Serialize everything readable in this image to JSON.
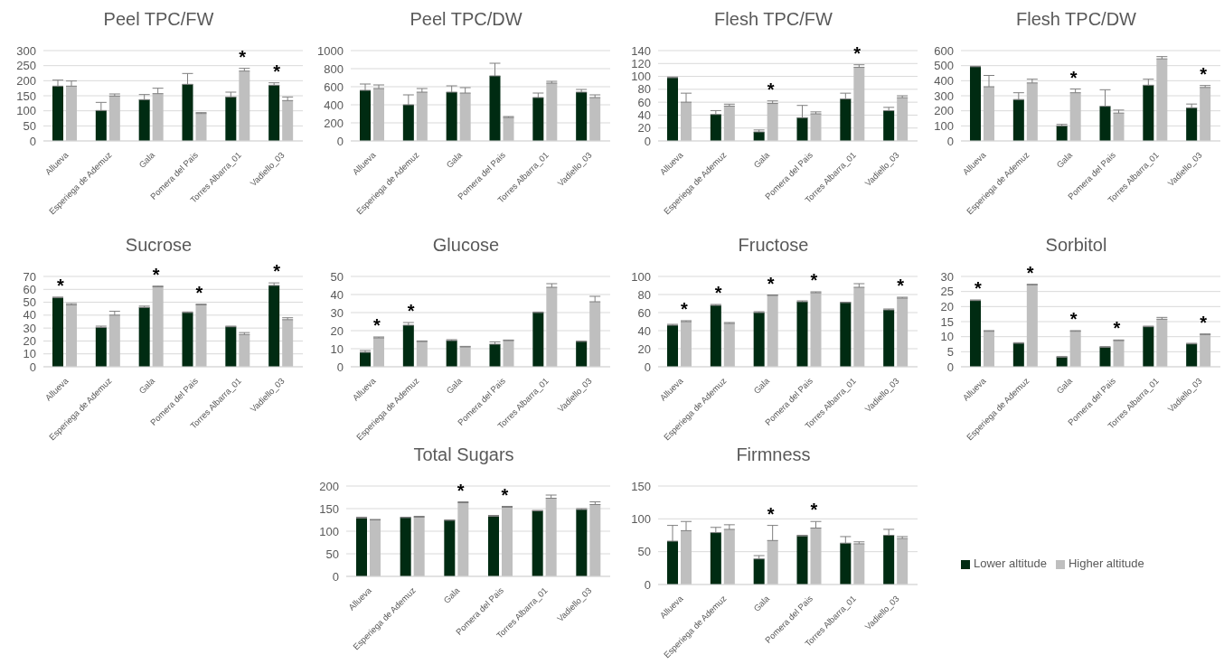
{
  "chart_data": [
    {
      "type": "bar",
      "title": "Peel TPC/FW",
      "categories": [
        "Allueva",
        "Esperiega de Ademuz",
        "Gala",
        "Pomera del Pais",
        "Torres Albarra_01",
        "Vadiello_03"
      ],
      "ylim": [
        0,
        300
      ],
      "yticks": [
        0,
        50,
        100,
        150,
        200,
        250,
        300
      ],
      "grid": "y",
      "series": [
        {
          "color": "#002b12",
          "values": [
            182,
            101,
            137,
            188,
            146,
            185
          ],
          "errors": [
            [
              182,
              202
            ],
            [
              101,
              128
            ],
            [
              137,
              154
            ],
            [
              188,
              224
            ],
            [
              146,
              162
            ],
            [
              185,
              193
            ]
          ]
        },
        {
          "color": "#bfbfbf",
          "values": [
            182,
            149,
            157,
            91,
            232,
            134
          ],
          "errors": [
            [
              182,
              199
            ],
            [
              149,
              156
            ],
            [
              157,
              175
            ],
            [
              91,
              94
            ],
            [
              232,
              241
            ],
            [
              134,
              146
            ]
          ]
        }
      ],
      "annotations": [
        {
          "text": "*",
          "x": "Torres Albarra_01",
          "y": 232
        },
        {
          "text": "*",
          "x": "Vadiello_03",
          "y": 185
        }
      ]
    },
    {
      "type": "bar",
      "title": "Peel TPC/DW",
      "categories": [
        "Allueva",
        "Esperiega de Ademuz",
        "Gala",
        "Pomera del Pais",
        "Torres Albarra_01",
        "Vadiello_03"
      ],
      "ylim": [
        0,
        1000
      ],
      "yticks": [
        0,
        200,
        400,
        600,
        800,
        1000
      ],
      "grid": "y",
      "series": [
        {
          "color": "#002b12",
          "values": [
            560,
            400,
            540,
            720,
            480,
            540
          ],
          "errors": [
            [
              560,
              630
            ],
            [
              400,
              510
            ],
            [
              540,
              610
            ],
            [
              720,
              860
            ],
            [
              480,
              530
            ],
            [
              540,
              570
            ]
          ]
        },
        {
          "color": "#bfbfbf",
          "values": [
            580,
            540,
            530,
            260,
            640,
            480
          ],
          "errors": [
            [
              580,
              620
            ],
            [
              540,
              580
            ],
            [
              530,
              590
            ],
            [
              260,
              270
            ],
            [
              640,
              660
            ],
            [
              480,
              510
            ]
          ]
        }
      ]
    },
    {
      "type": "bar",
      "title": "Flesh TPC/FW",
      "categories": [
        "Allueva",
        "Esperiega de Ademuz",
        "Gala",
        "Pomera del Pais",
        "Torres Albarra_01",
        "Vadiello_03"
      ],
      "ylim": [
        0,
        140
      ],
      "yticks": [
        0,
        20,
        40,
        60,
        80,
        100,
        120,
        140
      ],
      "grid": "y",
      "series": [
        {
          "color": "#002b12",
          "values": [
            98,
            41,
            14,
            36,
            65,
            47
          ],
          "errors": [
            [
              98,
              99
            ],
            [
              41,
              47
            ],
            [
              14,
              17
            ],
            [
              36,
              55
            ],
            [
              65,
              74
            ],
            [
              47,
              52
            ]
          ]
        },
        {
          "color": "#bfbfbf",
          "values": [
            60,
            54,
            58,
            42,
            114,
            67
          ],
          "errors": [
            [
              60,
              74
            ],
            [
              54,
              57
            ],
            [
              58,
              62
            ],
            [
              42,
              45
            ],
            [
              114,
              118
            ],
            [
              67,
              70
            ]
          ]
        }
      ],
      "annotations": [
        {
          "text": "*",
          "x": "Gala",
          "y": 58
        },
        {
          "text": "*",
          "x": "Torres Albarra_01",
          "y": 114
        }
      ]
    },
    {
      "type": "bar",
      "title": "Flesh TPC/DW",
      "categories": [
        "Allueva",
        "Esperiega de Ademuz",
        "Gala",
        "Pomera del Pais",
        "Torres Albarra_01",
        "Vadiello_03"
      ],
      "ylim": [
        0,
        600
      ],
      "yticks": [
        0,
        100,
        200,
        300,
        400,
        500,
        600
      ],
      "grid": "y",
      "series": [
        {
          "color": "#002b12",
          "values": [
            493,
            275,
            100,
            230,
            370,
            220
          ],
          "errors": [
            [
              493,
              496
            ],
            [
              275,
              320
            ],
            [
              100,
              110
            ],
            [
              230,
              340
            ],
            [
              370,
              410
            ],
            [
              220,
              245
            ]
          ]
        },
        {
          "color": "#bfbfbf",
          "values": [
            360,
            385,
            320,
            185,
            545,
            355
          ],
          "errors": [
            [
              360,
              435
            ],
            [
              385,
              410
            ],
            [
              320,
              345
            ],
            [
              185,
              205
            ],
            [
              545,
              560
            ],
            [
              355,
              368
            ]
          ]
        }
      ],
      "annotations": [
        {
          "text": "*",
          "x": "Gala",
          "y": 320
        },
        {
          "text": "*",
          "x": "Vadiello_03",
          "y": 355
        }
      ]
    },
    {
      "type": "bar",
      "title": "Sucrose",
      "categories": [
        "Allueva",
        "Esperiega de Ademuz",
        "Gala",
        "Pomera del Pais",
        "Torres Albarra_01",
        "Vadiello_03"
      ],
      "ylim": [
        0,
        70
      ],
      "yticks": [
        0,
        10,
        20,
        30,
        40,
        50,
        60,
        70
      ],
      "grid": "y",
      "series": [
        {
          "color": "#002b12",
          "values": [
            53.5,
            30.5,
            46,
            42,
            31,
            63
          ],
          "errors": [
            [
              53.5,
              54
            ],
            [
              30.5,
              31.5
            ],
            [
              46,
              47
            ],
            [
              42,
              42.5
            ],
            [
              31,
              31.5
            ],
            [
              63,
              65
            ]
          ]
        },
        {
          "color": "#bfbfbf",
          "values": [
            48,
            40,
            62,
            48,
            25,
            36.5
          ],
          "errors": [
            [
              48,
              49
            ],
            [
              40,
              43
            ],
            [
              62,
              62.5
            ],
            [
              48,
              48.5
            ],
            [
              25,
              26.5
            ],
            [
              36.5,
              38
            ]
          ]
        }
      ],
      "annotations": [
        {
          "text": "*",
          "x": "Allueva",
          "y": 53.5
        },
        {
          "text": "*",
          "x": "Gala",
          "y": 62
        },
        {
          "text": "*",
          "x": "Pomera del Pais",
          "y": 48
        },
        {
          "text": "*",
          "x": "Vadiello_03",
          "y": 63
        }
      ]
    },
    {
      "type": "bar",
      "title": "Glucose",
      "categories": [
        "Allueva",
        "Esperiega de Ademuz",
        "Gala",
        "Pomera del Pais",
        "Torres Albarra_01",
        "Vadiello_03"
      ],
      "ylim": [
        0,
        50
      ],
      "yticks": [
        0,
        10,
        20,
        30,
        40,
        50
      ],
      "grid": "y",
      "series": [
        {
          "color": "#002b12",
          "values": [
            8,
            23,
            14.5,
            12.5,
            30,
            14
          ],
          "errors": [
            [
              8,
              9
            ],
            [
              23,
              24.5
            ],
            [
              14.5,
              15
            ],
            [
              12.5,
              13.8
            ],
            [
              30,
              30.3
            ],
            [
              14,
              14.2
            ]
          ]
        },
        {
          "color": "#bfbfbf",
          "values": [
            16,
            14,
            11,
            14.5,
            44,
            36
          ],
          "errors": [
            [
              16,
              16.5
            ],
            [
              14,
              14.3
            ],
            [
              11,
              11.3
            ],
            [
              14.5,
              14.8
            ],
            [
              44,
              46
            ],
            [
              36,
              39
            ]
          ]
        }
      ],
      "annotations": [
        {
          "text": "*",
          "x": "Allueva",
          "y": 16
        },
        {
          "text": "*",
          "x": "Esperiega de Ademuz",
          "y": 23
        }
      ]
    },
    {
      "type": "bar",
      "title": "Fructose",
      "categories": [
        "Allueva",
        "Esperiega de Ademuz",
        "Gala",
        "Pomera del Pais",
        "Torres Albarra_01",
        "Vadiello_03"
      ],
      "ylim": [
        0,
        100
      ],
      "yticks": [
        0,
        20,
        40,
        60,
        80,
        100
      ],
      "grid": "y",
      "series": [
        {
          "color": "#002b12",
          "values": [
            46,
            68,
            60,
            72,
            71,
            63
          ],
          "errors": [
            [
              46,
              47
            ],
            [
              68,
              69
            ],
            [
              60,
              61
            ],
            [
              72,
              73
            ],
            [
              71,
              71.5
            ],
            [
              63,
              64
            ]
          ]
        },
        {
          "color": "#bfbfbf",
          "values": [
            50,
            48,
            79,
            82,
            88,
            76
          ],
          "errors": [
            [
              50,
              51
            ],
            [
              48,
              49
            ],
            [
              79,
              79.5
            ],
            [
              82,
              83
            ],
            [
              88,
              92
            ],
            [
              76,
              77
            ]
          ]
        }
      ],
      "annotations": [
        {
          "text": "*",
          "x": "Allueva",
          "y": 50
        },
        {
          "text": "*",
          "x": "Esperiega de Ademuz",
          "y": 68
        },
        {
          "text": "*",
          "x": "Gala",
          "y": 79
        },
        {
          "text": "*",
          "x": "Pomera del Pais",
          "y": 82
        },
        {
          "text": "*",
          "x": "Vadiello_03",
          "y": 76
        }
      ]
    },
    {
      "type": "bar",
      "title": "Sorbitol",
      "categories": [
        "Allueva",
        "Esperiega de Ademuz",
        "Gala",
        "Pomera del Pais",
        "Torres Albarra_01",
        "Vadiello_03"
      ],
      "ylim": [
        0,
        30
      ],
      "yticks": [
        0,
        5,
        10,
        15,
        20,
        25,
        30
      ],
      "grid": "y",
      "series": [
        {
          "color": "#002b12",
          "values": [
            22,
            7.8,
            3.2,
            6.5,
            13.3,
            7.6
          ],
          "errors": [
            [
              22,
              22.2
            ],
            [
              7.8,
              8
            ],
            [
              3.2,
              3.4
            ],
            [
              6.5,
              6.7
            ],
            [
              13.3,
              13.5
            ],
            [
              7.6,
              7.8
            ]
          ]
        },
        {
          "color": "#bfbfbf",
          "values": [
            11.8,
            27.2,
            11.8,
            8.7,
            15.8,
            10.7
          ],
          "errors": [
            [
              11.8,
              12
            ],
            [
              27.2,
              27.4
            ],
            [
              11.8,
              12
            ],
            [
              8.7,
              8.9
            ],
            [
              15.8,
              16.4
            ],
            [
              10.7,
              10.9
            ]
          ]
        }
      ],
      "annotations": [
        {
          "text": "*",
          "x": "Allueva",
          "y": 22
        },
        {
          "text": "*",
          "x": "Esperiega de Ademuz",
          "y": 27.2
        },
        {
          "text": "*",
          "x": "Gala",
          "y": 11.8
        },
        {
          "text": "*",
          "x": "Pomera del Pais",
          "y": 8.7
        },
        {
          "text": "*",
          "x": "Vadiello_03",
          "y": 10.7
        }
      ]
    },
    {
      "type": "bar",
      "title": "Total Sugars",
      "categories": [
        "Allueva",
        "Esperiega de Ademuz",
        "Gala",
        "Pomera del Pais",
        "Torres Albarra_01",
        "Vadiello_03"
      ],
      "ylim": [
        0,
        200
      ],
      "yticks": [
        0,
        50,
        100,
        150,
        200
      ],
      "grid": "y",
      "series": [
        {
          "color": "#002b12",
          "values": [
            129,
            130,
            124,
            133,
            145,
            148
          ],
          "errors": [
            [
              129,
              131
            ],
            [
              130,
              131
            ],
            [
              124,
              125
            ],
            [
              133,
              135
            ],
            [
              145,
              146
            ],
            [
              148,
              150
            ]
          ]
        },
        {
          "color": "#bfbfbf",
          "values": [
            125,
            131,
            163,
            153,
            173,
            159
          ],
          "errors": [
            [
              125,
              126
            ],
            [
              131,
              133
            ],
            [
              163,
              165
            ],
            [
              153,
              155
            ],
            [
              173,
              180
            ],
            [
              159,
              165
            ]
          ]
        }
      ],
      "annotations": [
        {
          "text": "*",
          "x": "Gala",
          "y": 163
        },
        {
          "text": "*",
          "x": "Pomera del Pais",
          "y": 153
        }
      ]
    },
    {
      "type": "bar",
      "title": "Firmness",
      "categories": [
        "Allueva",
        "Esperiega de Ademuz",
        "Gala",
        "Pomera del Pais",
        "Torres Albarra_01",
        "Vadiello_03"
      ],
      "ylim": [
        0,
        150
      ],
      "yticks": [
        0,
        50,
        100,
        150
      ],
      "grid": "y",
      "legend": "right",
      "series": [
        {
          "name": "Lower altitude",
          "color": "#002b12",
          "values": [
            66,
            79,
            39,
            74,
            63,
            75
          ],
          "errors": [
            [
              66,
              90
            ],
            [
              79,
              87
            ],
            [
              39,
              44
            ],
            [
              74,
              75
            ],
            [
              63,
              73
            ],
            [
              75,
              84
            ]
          ]
        },
        {
          "name": "Higher altitude",
          "color": "#bfbfbf",
          "values": [
            82,
            84,
            67,
            86,
            62,
            70
          ],
          "errors": [
            [
              82,
              96
            ],
            [
              84,
              91
            ],
            [
              67,
              90
            ],
            [
              86,
              96
            ],
            [
              62,
              65
            ],
            [
              70,
              73
            ]
          ]
        }
      ],
      "annotations": [
        {
          "text": "*",
          "x": "Gala",
          "y": 67
        },
        {
          "text": "*",
          "x": "Pomera del Pais",
          "y": 86
        }
      ]
    }
  ]
}
